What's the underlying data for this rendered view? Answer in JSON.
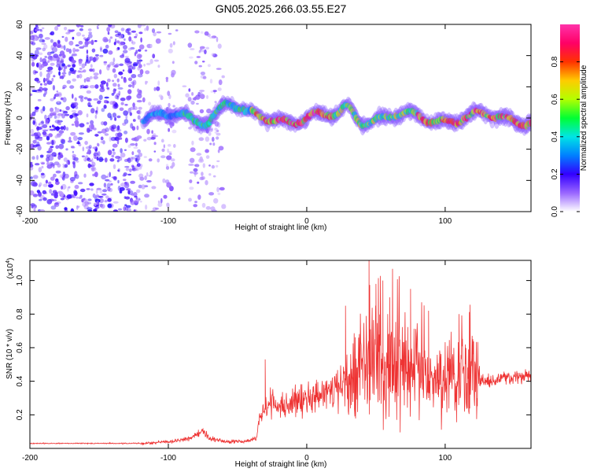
{
  "title": "GN05.2025.266.03.55.E27",
  "chart_data": [
    {
      "type": "heatmap",
      "title": "GN05.2025.266.03.55.E27",
      "xlabel": "Height of straight line (km)",
      "ylabel": "Frequency (Hz)",
      "xlim": [
        -200,
        162
      ],
      "ylim": [
        -60,
        60
      ],
      "xticks": [
        -200,
        -100,
        0,
        100
      ],
      "yticks": [
        -60,
        -40,
        -20,
        0,
        20,
        40,
        60
      ],
      "colorbar": {
        "label": "Normalized spectral amplitude",
        "range": [
          0.0,
          1.0
        ],
        "ticks": [
          "0.0",
          "0.2",
          "0.4",
          "0.6",
          "0.8"
        ],
        "colors": [
          "#ffffff",
          "#9966ff",
          "#3300ff",
          "#0080ff",
          "#00e5e5",
          "#00ff33",
          "#b3ff00",
          "#ffcc00",
          "#ff3300",
          "#ff0066",
          "#ff33aa"
        ]
      },
      "features": {
        "scattered_noise_x_range": [
          -200,
          -60
        ],
        "noise_density_change_at_km": -120,
        "central_band_x_range": [
          -118,
          162
        ],
        "central_band_freq_hz": 0
      }
    },
    {
      "type": "line",
      "xlabel": "Height of straight line (km)",
      "ylabel": "SNR (10 * v/v)",
      "yscale_label_base": "(x10",
      "yscale_label_exp": "4",
      "yscale_label_close": ")",
      "xlim": [
        -200,
        162
      ],
      "ylim": [
        0,
        1.12
      ],
      "xticks": [
        -200,
        -100,
        0,
        100
      ],
      "yticks": [
        0.2,
        0.4,
        0.6,
        0.8,
        1.0
      ],
      "ytick_labels": [
        "0.2",
        "0.4",
        "0.6",
        "0.8",
        "1.0"
      ],
      "color": "#ee3333",
      "envelope": {
        "x": [
          -200,
          -120,
          -100,
          -90,
          -85,
          -80,
          -75,
          -70,
          -60,
          -50,
          -40,
          -36,
          -35,
          -30,
          -25,
          -20,
          -10,
          0,
          10,
          20,
          25,
          30,
          35,
          40,
          50,
          60,
          70,
          80,
          90,
          100,
          110,
          120,
          130,
          140,
          150,
          162
        ],
        "y": [
          0.03,
          0.03,
          0.04,
          0.05,
          0.06,
          0.08,
          0.1,
          0.06,
          0.04,
          0.04,
          0.05,
          0.06,
          0.15,
          0.25,
          0.27,
          0.25,
          0.27,
          0.3,
          0.32,
          0.34,
          0.38,
          0.4,
          0.44,
          0.5,
          0.5,
          0.48,
          0.45,
          0.42,
          0.42,
          0.42,
          0.42,
          0.4,
          0.4,
          0.42,
          0.42,
          0.42
        ]
      },
      "peaks": [
        {
          "x": -30,
          "y": 0.53
        },
        {
          "x": 28,
          "y": 0.85
        },
        {
          "x": 45,
          "y": 1.12
        },
        {
          "x": 50,
          "y": 0.98
        },
        {
          "x": 55,
          "y": 1.0
        },
        {
          "x": 60,
          "y": 0.9
        },
        {
          "x": 75,
          "y": 0.95
        },
        {
          "x": 88,
          "y": 0.82
        },
        {
          "x": 110,
          "y": 0.8
        },
        {
          "x": 120,
          "y": 0.65
        }
      ]
    }
  ]
}
